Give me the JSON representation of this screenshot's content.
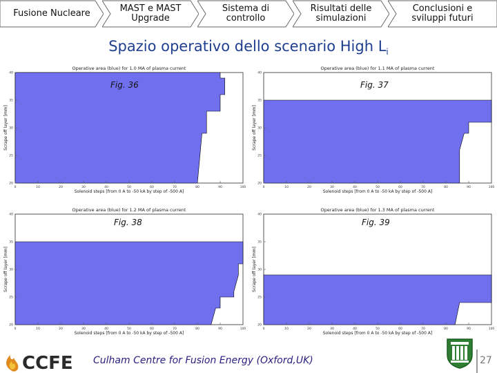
{
  "nav": {
    "items": [
      {
        "label": "Fusione Nucleare"
      },
      {
        "label": "MAST e MAST\nUpgrade"
      },
      {
        "label": "Sistema di\ncontrollo"
      },
      {
        "label": "Risultati delle\nsimulazioni"
      },
      {
        "label": "Conclusioni e\nsviluppi futuri"
      }
    ]
  },
  "slide": {
    "title": "Spazio operativo dello scenario High L",
    "title_sub": "i",
    "footer_text": "Culham Centre for Fusion Energy (Oxford,UK)",
    "logo_text": "CCFE",
    "page_number": "27"
  },
  "colors": {
    "area_fill": "#7070ef",
    "title": "#1f3e8e",
    "nav_fill": "#ffffff",
    "nav_stroke": "#666666"
  },
  "charts": [
    {
      "fig_label": "Fig. 36",
      "chart_data": {
        "type": "area",
        "title": "Operative area (blue) for 1.0 MA of plasma current",
        "xlabel": "Solenoid steps [from 0 A to -50 kA by step of -500 A]",
        "ylabel": "Scrape off layer [mm]",
        "xlim": [
          0,
          100
        ],
        "ylim": [
          20,
          40
        ],
        "x_ticks": [
          "0",
          "10",
          "20",
          "30",
          "40",
          "50",
          "60",
          "70",
          "80",
          "90",
          "100"
        ],
        "y_ticks": [
          "20",
          "25",
          "30",
          "35",
          "40"
        ],
        "boundary": [
          [
            0,
            40
          ],
          [
            90,
            40
          ],
          [
            90,
            39
          ],
          [
            92,
            39
          ],
          [
            92,
            36
          ],
          [
            90,
            36
          ],
          [
            90,
            33
          ],
          [
            84,
            33
          ],
          [
            84,
            29
          ],
          [
            82,
            29
          ],
          [
            80,
            20
          ]
        ]
      }
    },
    {
      "fig_label": "Fig. 37",
      "chart_data": {
        "type": "area",
        "title": "Operative area (blue) for 1.1 MA of plasma current",
        "xlabel": "Solenoid steps [from 0 A to -50 kA by step of -500 A]",
        "ylabel": "Scrape off layer [mm]",
        "xlim": [
          0,
          100
        ],
        "ylim": [
          20,
          40
        ],
        "x_ticks": [
          "0",
          "10",
          "20",
          "30",
          "40",
          "50",
          "60",
          "70",
          "80",
          "90",
          "100"
        ],
        "y_ticks": [
          "20",
          "25",
          "30",
          "35",
          "40"
        ],
        "boundary": [
          [
            0,
            35
          ],
          [
            100,
            35
          ],
          [
            100,
            31
          ],
          [
            90,
            31
          ],
          [
            90,
            29
          ],
          [
            88,
            29
          ],
          [
            86,
            26
          ],
          [
            86,
            20
          ]
        ]
      }
    },
    {
      "fig_label": "Fig. 38",
      "chart_data": {
        "type": "area",
        "title": "Operative area (blue) for 1.2 MA of plasma current",
        "xlabel": "Solenoid steps [from 0 A to -50 kA by step of -500 A]",
        "ylabel": "Scrape off layer [mm]",
        "xlim": [
          0,
          100
        ],
        "ylim": [
          20,
          40
        ],
        "x_ticks": [
          "0",
          "10",
          "20",
          "30",
          "40",
          "50",
          "60",
          "70",
          "80",
          "90",
          "100"
        ],
        "y_ticks": [
          "20",
          "25",
          "30",
          "35",
          "40"
        ],
        "boundary": [
          [
            0,
            35
          ],
          [
            100,
            35
          ],
          [
            100,
            31
          ],
          [
            98,
            31
          ],
          [
            98,
            29
          ],
          [
            96,
            26
          ],
          [
            96,
            25
          ],
          [
            90,
            25
          ],
          [
            90,
            23
          ],
          [
            88,
            23
          ],
          [
            86,
            20
          ]
        ]
      }
    },
    {
      "fig_label": "Fig. 39",
      "chart_data": {
        "type": "area",
        "title": "Operative area (blue) for 1.3 MA of plasma current",
        "xlabel": "Solenoid steps [from 0 A to -50 kA by step of -500 A]",
        "ylabel": "Scrape off layer [mm]",
        "xlim": [
          0,
          100
        ],
        "ylim": [
          20,
          40
        ],
        "x_ticks": [
          "0",
          "10",
          "20",
          "30",
          "40",
          "50",
          "60",
          "70",
          "80",
          "90",
          "100"
        ],
        "y_ticks": [
          "20",
          "25",
          "30",
          "35",
          "40"
        ],
        "boundary": [
          [
            0,
            29
          ],
          [
            100,
            29
          ],
          [
            100,
            24
          ],
          [
            86,
            24
          ],
          [
            84,
            20
          ]
        ]
      }
    }
  ]
}
